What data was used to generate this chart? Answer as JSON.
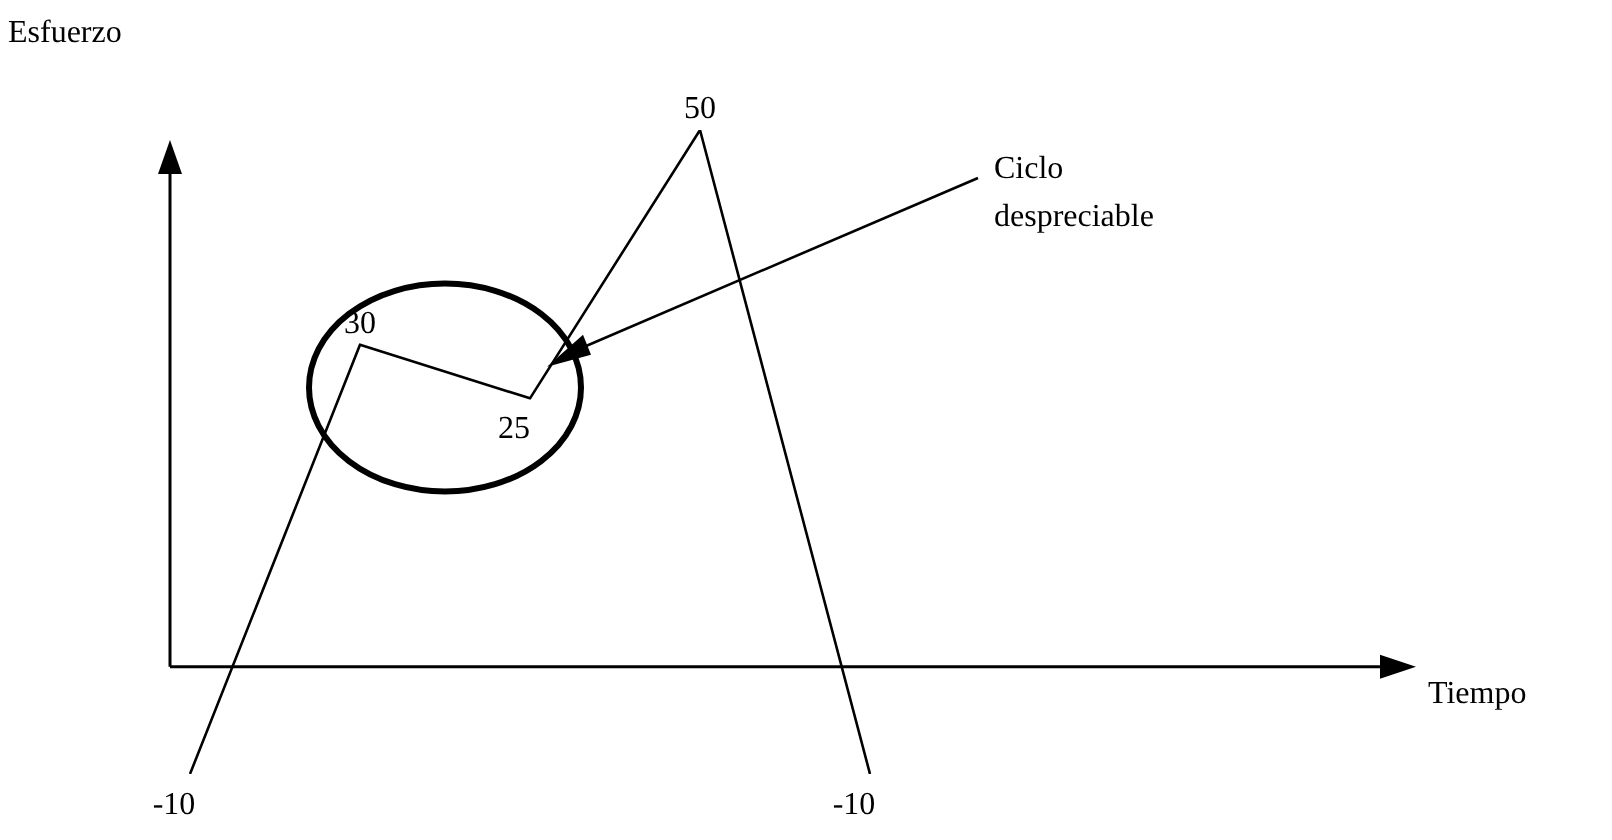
{
  "chart_data": {
    "type": "line",
    "ylabel": "Esfuerzo",
    "categories": [
      null,
      null,
      null,
      null,
      null
    ],
    "series": [
      {
        "color": "#000000",
        "values": [
          -10,
          30,
          25,
          50,
          -10
        ]
      }
    ],
    "data_labels": true,
    "marker": "none",
    "legend": false,
    "annotations": [
      "Tiempo",
      "Ciclo despreciable"
    ]
  }
}
